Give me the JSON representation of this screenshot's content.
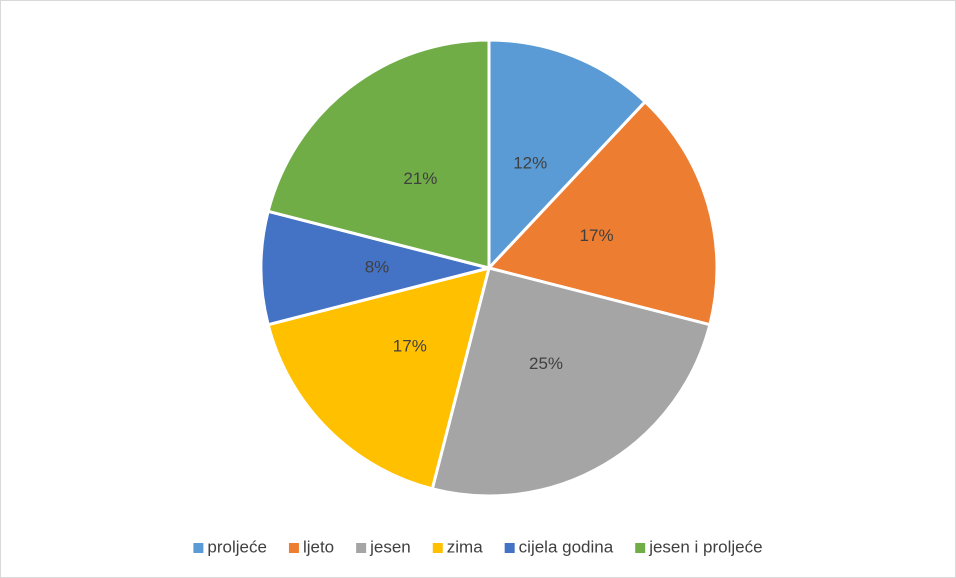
{
  "chart_data": {
    "type": "pie",
    "categories": [
      "proljeće",
      "ljeto",
      "jesen",
      "zima",
      "cijela godina",
      "jesen i proljeće"
    ],
    "values": [
      12,
      17,
      25,
      17,
      8,
      21
    ],
    "value_labels": [
      "12%",
      "17%",
      "25%",
      "17%",
      "8%",
      "21%"
    ],
    "colors": [
      "#5b9bd5",
      "#ed7d31",
      "#a5a5a5",
      "#ffc000",
      "#4472c4",
      "#70ad47"
    ],
    "legend": "bottom"
  }
}
